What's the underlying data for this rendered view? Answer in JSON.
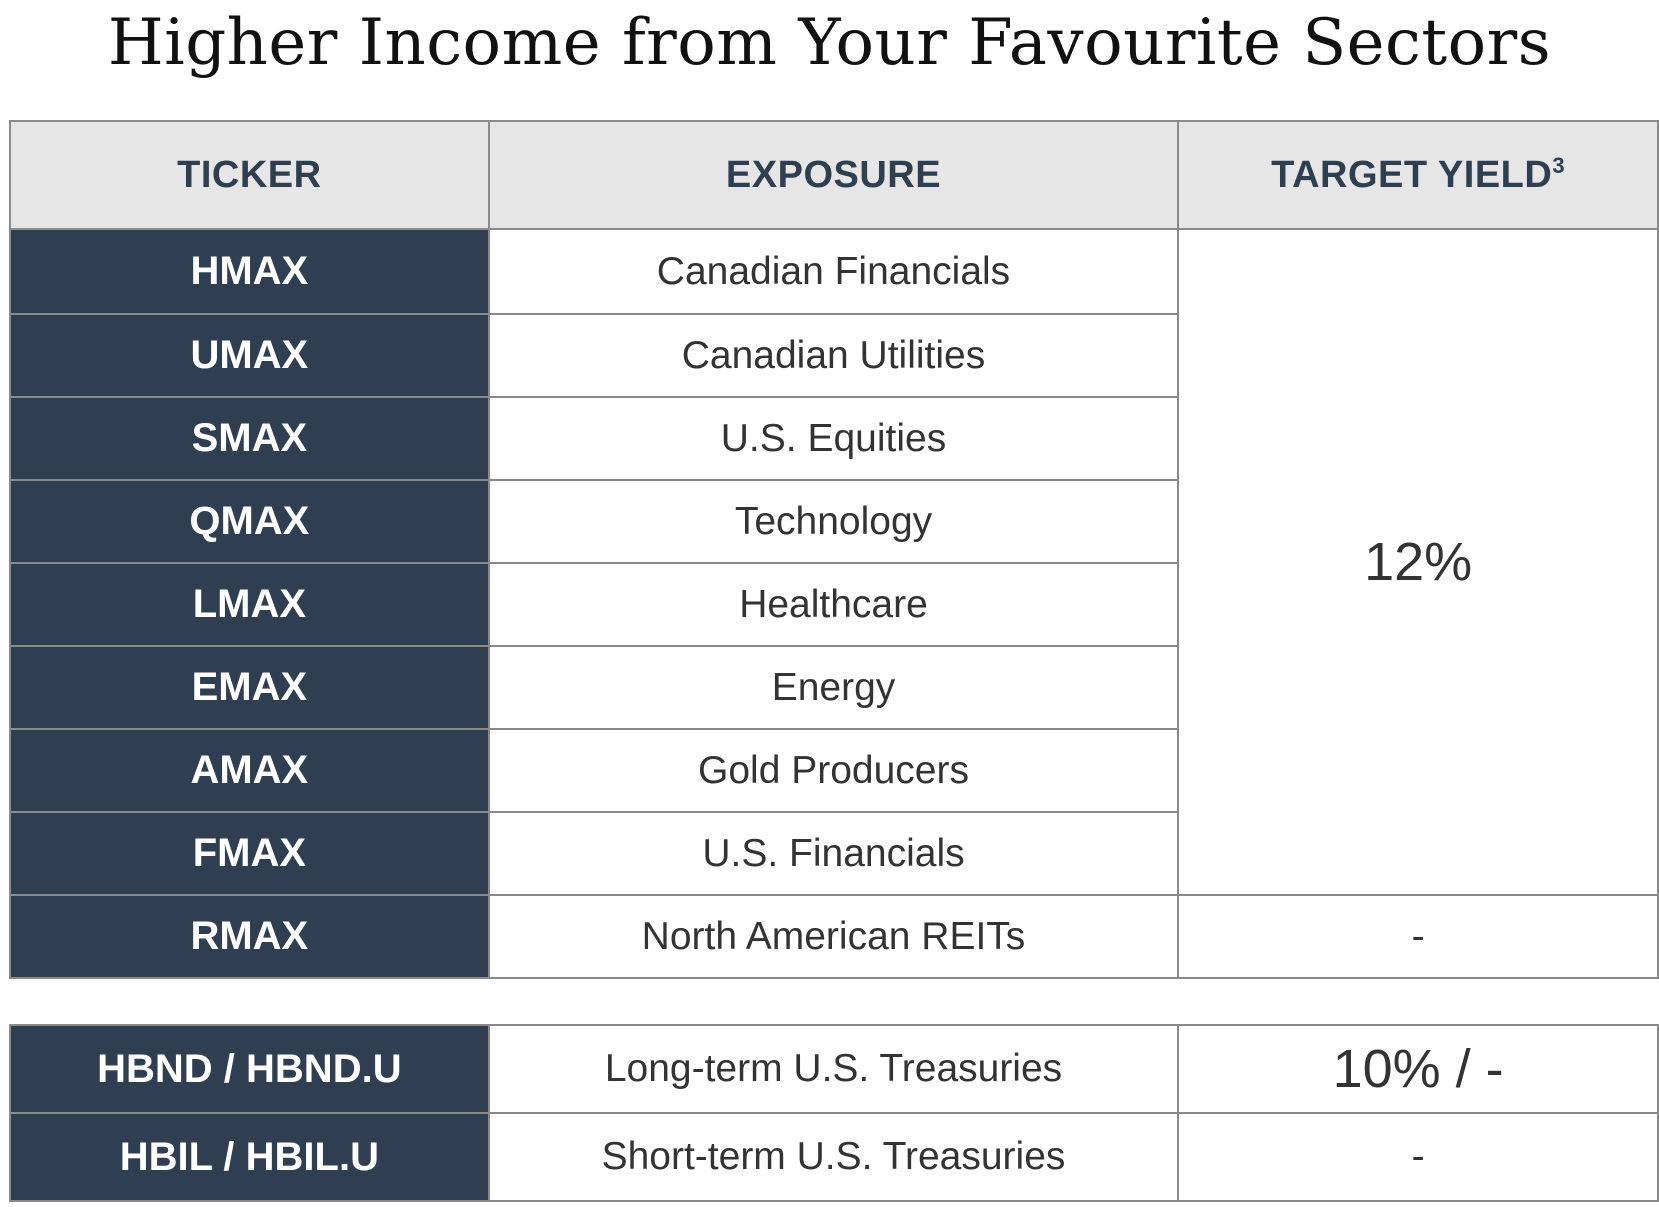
{
  "title": "Higher Income from Your Favourite Sectors",
  "headers": {
    "ticker": "TICKER",
    "exposure": "EXPOSURE",
    "target_yield": "TARGET YIELD",
    "target_yield_footnote": "3"
  },
  "main_rows": [
    {
      "ticker": "HMAX",
      "exposure": "Canadian Financials"
    },
    {
      "ticker": "UMAX",
      "exposure": "Canadian Utilities"
    },
    {
      "ticker": "SMAX",
      "exposure": "U.S. Equities"
    },
    {
      "ticker": "QMAX",
      "exposure": "Technology"
    },
    {
      "ticker": "LMAX",
      "exposure": "Healthcare"
    },
    {
      "ticker": "EMAX",
      "exposure": "Energy"
    },
    {
      "ticker": "AMAX",
      "exposure": "Gold Producers"
    },
    {
      "ticker": "FMAX",
      "exposure": "U.S. Financials"
    },
    {
      "ticker": "RMAX",
      "exposure": "North American REITs",
      "yield": "-"
    }
  ],
  "group_yield": "12%",
  "bond_rows": [
    {
      "ticker": "HBND / HBND.U",
      "exposure": "Long-term U.S. Treasuries",
      "yield": "10% / -"
    },
    {
      "ticker": "HBIL / HBIL.U",
      "exposure": "Short-term U.S. Treasuries",
      "yield": "-"
    }
  ],
  "colors": {
    "ticker_bg": "#2f3e50",
    "header_bg": "#e6e6e6",
    "header_text": "#2f3f52",
    "border": "#8a8a8a"
  }
}
